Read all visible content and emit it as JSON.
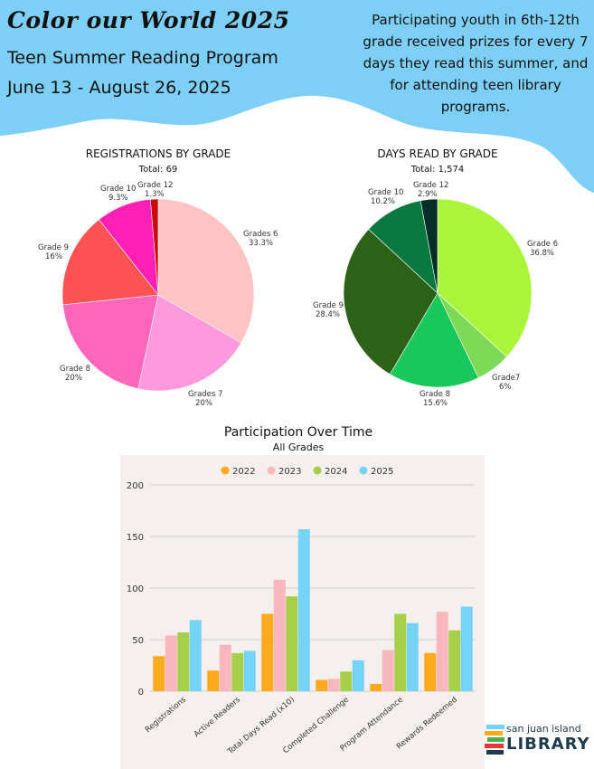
{
  "header": {
    "title": "Color our World 2025",
    "subtitle": "Teen Summer Reading Program",
    "dates": "June 13 - August 26, 2025",
    "blurb": "Participating youth in 6th-12th grade received prizes for every 7 days they read this summer, and for attending teen library programs."
  },
  "colors": {
    "banner": "#7ecff5",
    "plot_bg": "#f5f0ed"
  },
  "chart_data": [
    {
      "type": "pie",
      "title": "REGISTRATIONS BY GRADE",
      "subtitle": "Total: 69",
      "slices": [
        {
          "name": "Grades 6",
          "label": "33.3%",
          "value": 33.3,
          "color": "#ffc3c3"
        },
        {
          "name": "Grades 7",
          "label": "20%",
          "value": 20,
          "color": "#ff99dd"
        },
        {
          "name": "Grade 8",
          "label": "20%",
          "value": 20,
          "color": "#ff66bb"
        },
        {
          "name": "Grade 9",
          "label": "16%",
          "value": 16,
          "color": "#ff5252"
        },
        {
          "name": "Grade 10",
          "label": "9.3%",
          "value": 9.3,
          "color": "#ff1fb4"
        },
        {
          "name": "Grade 12",
          "label": "1.3%",
          "value": 1.3,
          "color": "#cc0a0a"
        }
      ]
    },
    {
      "type": "pie",
      "title": "DAYS READ BY GRADE",
      "subtitle": "Total: 1,574",
      "slices": [
        {
          "name": "Grade 6",
          "label": "36.8%",
          "value": 36.8,
          "color": "#a9f53b"
        },
        {
          "name": "Grade7",
          "label": "6%",
          "value": 6,
          "color": "#7ed957"
        },
        {
          "name": "Grade 8",
          "label": "15.6%",
          "value": 15.6,
          "color": "#19c85a"
        },
        {
          "name": "Grade 9",
          "label": "28.4%",
          "value": 28.4,
          "color": "#2e6118"
        },
        {
          "name": "Grade 10",
          "label": "10.2%",
          "value": 10.2,
          "color": "#08783e"
        },
        {
          "name": "Grade 12",
          "label": "2.9%",
          "value": 2.9,
          "color": "#052e26"
        }
      ]
    },
    {
      "type": "bar",
      "title": "Participation Over Time",
      "subtitle": "All Grades",
      "categories": [
        "Registrations",
        "Active Readers",
        "Total Days Read (x10)",
        "Completed Challenge",
        "Program Attendance",
        "Rewards Redeemed"
      ],
      "series": [
        {
          "name": "2022",
          "color": "#ffa91f",
          "values": [
            34,
            20,
            75,
            11,
            7,
            37
          ]
        },
        {
          "name": "2023",
          "color": "#f7b7bd",
          "values": [
            54,
            45,
            108,
            12,
            40,
            77
          ]
        },
        {
          "name": "2024",
          "color": "#a6cf4a",
          "values": [
            57,
            37,
            92,
            19,
            75,
            59
          ]
        },
        {
          "name": "2025",
          "color": "#74d3f7",
          "values": [
            69,
            39,
            157,
            30,
            66,
            82
          ]
        }
      ],
      "yticks": [
        "0",
        "50",
        "100",
        "150",
        "200"
      ],
      "ylim": [
        0,
        200
      ],
      "legend": "top",
      "grid": true
    }
  ],
  "logo": {
    "top_text": "san juan island",
    "main_text": "LIBRARY"
  }
}
